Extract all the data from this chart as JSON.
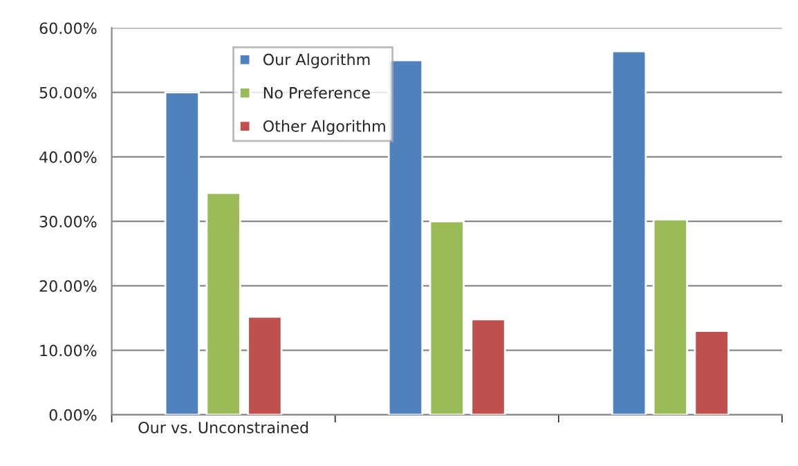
{
  "chart_data": {
    "type": "bar",
    "categories": [
      "Our vs. Unconstrained",
      null,
      null
    ],
    "series": [
      {
        "name": "Our Algorithm",
        "color": "#4f81bd",
        "values": [
          50.0,
          55.0,
          56.4
        ]
      },
      {
        "name": "No Preference",
        "color": "#9bbb59",
        "values": [
          34.4,
          30.0,
          30.3
        ]
      },
      {
        "name": "Other Algorithm",
        "color": "#c0504d",
        "values": [
          15.2,
          14.8,
          13.0
        ]
      }
    ],
    "ylim": [
      0,
      60
    ],
    "yticks": [
      {
        "value": 0,
        "label": "0.00%"
      },
      {
        "value": 10,
        "label": "10.00%"
      },
      {
        "value": 20,
        "label": "20.00%"
      },
      {
        "value": 30,
        "label": "30.00%"
      },
      {
        "value": 40,
        "label": "40.00%"
      },
      {
        "value": 50,
        "label": "50.00%"
      },
      {
        "value": 60,
        "label": "60.00%"
      }
    ],
    "grid": "y",
    "legend": "top left"
  }
}
